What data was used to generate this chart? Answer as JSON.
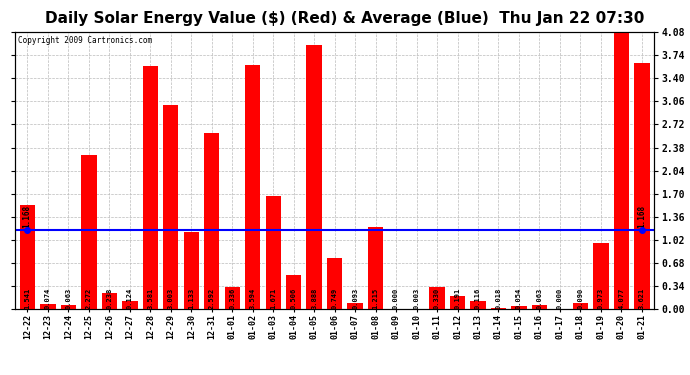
{
  "title": "Daily Solar Energy Value ($) (Red) & Average (Blue)  Thu Jan 22 07:30",
  "copyright": "Copyright 2009 Cartronics.com",
  "categories": [
    "12-22",
    "12-23",
    "12-24",
    "12-25",
    "12-26",
    "12-27",
    "12-28",
    "12-29",
    "12-30",
    "12-31",
    "01-01",
    "01-02",
    "01-03",
    "01-04",
    "01-05",
    "01-06",
    "01-07",
    "01-08",
    "01-09",
    "01-10",
    "01-11",
    "01-12",
    "01-13",
    "01-14",
    "01-15",
    "01-16",
    "01-17",
    "01-18",
    "01-19",
    "01-20",
    "01-21"
  ],
  "values": [
    1.541,
    0.074,
    0.063,
    2.272,
    0.238,
    0.124,
    3.581,
    3.003,
    1.133,
    2.592,
    0.336,
    3.594,
    1.671,
    0.506,
    3.888,
    0.749,
    0.093,
    1.215,
    0.0,
    0.003,
    0.33,
    0.191,
    0.116,
    0.018,
    0.054,
    0.063,
    0.0,
    0.09,
    0.973,
    4.077,
    3.621
  ],
  "average": 1.168,
  "bar_color": "#ff0000",
  "avg_line_color": "#0000ff",
  "background_color": "#ffffff",
  "plot_bg_color": "#ffffff",
  "grid_color": "#bbbbbb",
  "title_fontsize": 11,
  "label_fontsize": 5.5,
  "tick_fontsize": 6.5,
  "ylabel_right": [
    "0.00",
    "0.34",
    "0.68",
    "1.02",
    "1.36",
    "1.70",
    "2.04",
    "2.38",
    "2.72",
    "3.06",
    "3.40",
    "3.74",
    "4.08"
  ],
  "ylim": [
    0,
    4.08
  ],
  "yticks": [
    0.0,
    0.34,
    0.68,
    1.02,
    1.36,
    1.7,
    2.04,
    2.38,
    2.72,
    3.06,
    3.4,
    3.74,
    4.08
  ]
}
